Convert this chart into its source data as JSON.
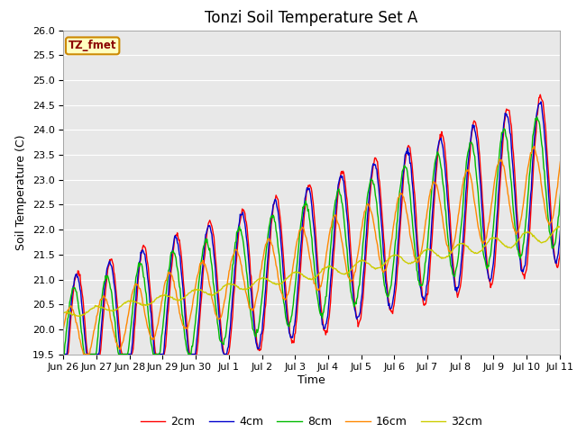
{
  "title": "Tonzi Soil Temperature Set A",
  "xlabel": "Time",
  "ylabel": "Soil Temperature (C)",
  "ylim": [
    19.5,
    26.0
  ],
  "yticks": [
    19.5,
    20.0,
    20.5,
    21.0,
    21.5,
    22.0,
    22.5,
    23.0,
    23.5,
    24.0,
    24.5,
    25.0,
    25.5,
    26.0
  ],
  "label_box_text": "TZ_fmet",
  "legend_labels": [
    "2cm",
    "4cm",
    "8cm",
    "16cm",
    "32cm"
  ],
  "line_colors": [
    "#ff0000",
    "#0000cc",
    "#00bb00",
    "#ff8800",
    "#cccc00"
  ],
  "background_color": "#e8e8e8",
  "num_days": 16,
  "xtick_labels": [
    "Jun 26",
    "Jun 27",
    "Jun 28",
    "Jun 29",
    "Jun 30",
    "Jul 1",
    "Jul 2",
    "Jul 3",
    "Jul 4",
    "Jul 5",
    "Jul 6",
    "Jul 7",
    "Jul 8",
    "Jul 9",
    "Jul 10",
    "Jul 11"
  ],
  "title_fontsize": 12,
  "axis_label_fontsize": 9,
  "tick_fontsize": 8
}
